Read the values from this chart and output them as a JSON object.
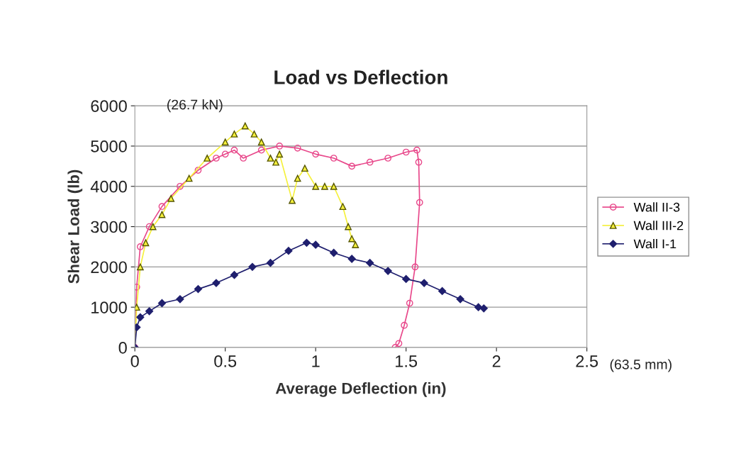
{
  "chart_data": {
    "type": "line",
    "title": "Load vs Deflection",
    "xlabel": "Average Deflection (in)",
    "ylabel": "Shear Load (lb)",
    "xlim": [
      0,
      2.5
    ],
    "xticks": [
      0,
      0.5,
      1,
      1.5,
      2,
      2.5
    ],
    "ylim": [
      0,
      6000
    ],
    "yticks": [
      0,
      1000,
      2000,
      3000,
      4000,
      5000,
      6000
    ],
    "grid": "y",
    "legend": "right",
    "annotations": [
      "(26.7 kN)",
      "(63.5 mm)"
    ],
    "series": [
      {
        "name": "Wall II-3",
        "color": "#e8478a",
        "marker": "circle",
        "x": [
          0,
          0.01,
          0.03,
          0.08,
          0.15,
          0.25,
          0.35,
          0.45,
          0.5,
          0.55,
          0.6,
          0.7,
          0.8,
          0.9,
          1.0,
          1.1,
          1.2,
          1.3,
          1.4,
          1.5,
          1.56,
          1.57,
          1.575,
          1.55,
          1.52,
          1.49,
          1.46,
          1.44
        ],
        "values": [
          0,
          1500,
          2500,
          3000,
          3500,
          4000,
          4400,
          4700,
          4800,
          4900,
          4700,
          4900,
          5000,
          4950,
          4800,
          4700,
          4500,
          4600,
          4700,
          4850,
          4900,
          4600,
          3600,
          2000,
          1100,
          550,
          100,
          0
        ]
      },
      {
        "name": "Wall III-2",
        "color": "#f5f03c",
        "marker": "triangle",
        "x": [
          0,
          0.01,
          0.03,
          0.06,
          0.1,
          0.15,
          0.2,
          0.3,
          0.4,
          0.5,
          0.55,
          0.61,
          0.66,
          0.7,
          0.75,
          0.78,
          0.8,
          0.87,
          0.9,
          0.94,
          1.0,
          1.05,
          1.1,
          1.15,
          1.18,
          1.2,
          1.22
        ],
        "values": [
          0,
          1000,
          2000,
          2600,
          3000,
          3300,
          3700,
          4200,
          4700,
          5100,
          5300,
          5500,
          5300,
          5100,
          4700,
          4600,
          4800,
          3650,
          4200,
          4450,
          4000,
          4000,
          4000,
          3500,
          3000,
          2700,
          2550
        ]
      },
      {
        "name": "Wall I-1",
        "color": "#1f1f6e",
        "marker": "diamond",
        "x": [
          0,
          0.01,
          0.03,
          0.08,
          0.15,
          0.25,
          0.35,
          0.45,
          0.55,
          0.65,
          0.75,
          0.85,
          0.95,
          1.0,
          1.1,
          1.2,
          1.3,
          1.4,
          1.5,
          1.6,
          1.7,
          1.8,
          1.9,
          1.93
        ],
        "values": [
          0,
          500,
          750,
          900,
          1100,
          1200,
          1450,
          1600,
          1800,
          2000,
          2100,
          2400,
          2600,
          2550,
          2350,
          2200,
          2100,
          1900,
          1700,
          1600,
          1400,
          1200,
          1000,
          970
        ]
      }
    ]
  }
}
